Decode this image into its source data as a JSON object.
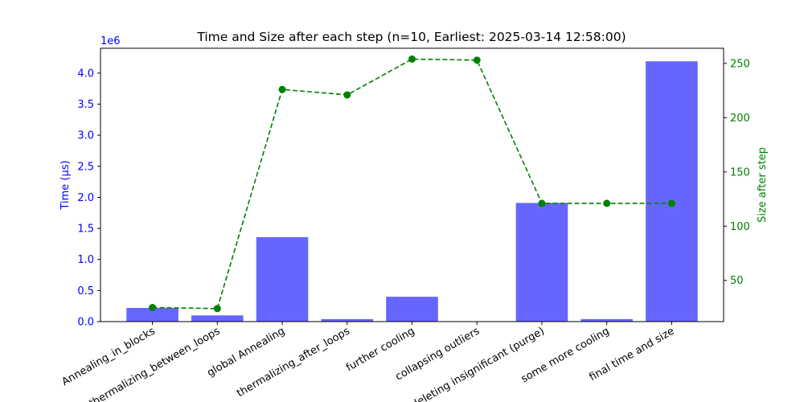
{
  "chart_data": {
    "type": "bar",
    "title": "Time and Size after each step (n=10, Earliest: 2025-03-14 12:58:00)",
    "categories": [
      "Annealing_in_blocks",
      "thermalizing_between_loops",
      "global Annealing",
      "thermalizing_after_loops",
      "further cooling",
      "collapsing outliers",
      "deleting insignificant (purge)",
      "some more cooling",
      "final time and size"
    ],
    "series": [
      {
        "name": "Time (µs)",
        "type": "bar",
        "axis": "left",
        "color": "#6666ff",
        "values": [
          220000,
          100000,
          1360000,
          40000,
          400000,
          0,
          1910000,
          40000,
          4190000
        ]
      },
      {
        "name": "Size after step",
        "type": "line",
        "axis": "right",
        "color": "#008000",
        "line_style": "dashed",
        "marker": "circle",
        "values": [
          25,
          24,
          226,
          221,
          254,
          253,
          121,
          121,
          121
        ]
      }
    ],
    "ylabel": "Time (µs)",
    "ylabel_color": "#0000ff",
    "y_offset_label": "1e6",
    "ylim": [
      0,
      4400000
    ],
    "y_ticks": [
      0.0,
      0.5,
      1.0,
      1.5,
      2.0,
      2.5,
      3.0,
      3.5,
      4.0
    ],
    "y2label": "Size after step",
    "y2label_color": "#008000",
    "y2lim": [
      12,
      264
    ],
    "y2_ticks": [
      50,
      100,
      150,
      200,
      250
    ],
    "grid": false
  }
}
